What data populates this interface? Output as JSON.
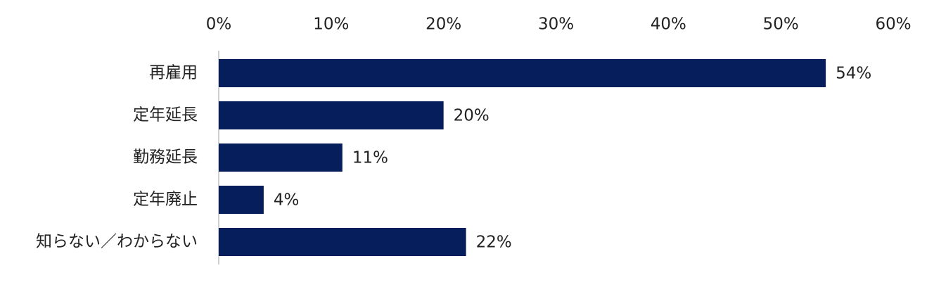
{
  "chart_data": {
    "type": "hbar",
    "categories": [
      "再雇用",
      "定年延長",
      "勤務延長",
      "定年廃止",
      "知らない／わからない"
    ],
    "values": [
      54,
      20,
      11,
      4,
      22
    ],
    "value_labels": [
      "54%",
      "20%",
      "11%",
      "4%",
      "22%"
    ],
    "color": "#061f5c",
    "xlim": [
      0,
      60
    ],
    "xticks": [
      {
        "value": 0,
        "label": "0%"
      },
      {
        "value": 10,
        "label": "10%"
      },
      {
        "value": 20,
        "label": "20%"
      },
      {
        "value": 30,
        "label": "30%"
      },
      {
        "value": 40,
        "label": "40%"
      },
      {
        "value": 50,
        "label": "50%"
      },
      {
        "value": 60,
        "label": "60%"
      }
    ],
    "grid": false
  }
}
